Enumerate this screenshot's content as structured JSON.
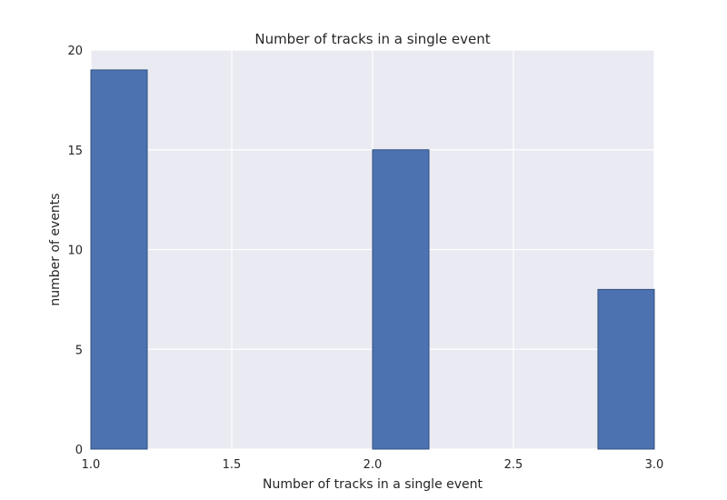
{
  "chart_data": {
    "type": "bar",
    "title": "Number of tracks in a single event",
    "xlabel": "Number of tracks in a single event",
    "ylabel": "number of events",
    "xlim": [
      1.0,
      3.0
    ],
    "ylim": [
      0,
      20
    ],
    "xticks": [
      "1.0",
      "1.5",
      "2.0",
      "2.5",
      "3.0"
    ],
    "yticks": [
      "0",
      "5",
      "10",
      "15",
      "20"
    ],
    "bins": [
      {
        "x_start": 1.0,
        "x_end": 1.2,
        "value": 19
      },
      {
        "x_start": 1.2,
        "x_end": 1.4,
        "value": 0
      },
      {
        "x_start": 1.4,
        "x_end": 1.6,
        "value": 0
      },
      {
        "x_start": 1.6,
        "x_end": 1.8,
        "value": 0
      },
      {
        "x_start": 1.8,
        "x_end": 2.0,
        "value": 0
      },
      {
        "x_start": 2.0,
        "x_end": 2.2,
        "value": 15
      },
      {
        "x_start": 2.2,
        "x_end": 2.4,
        "value": 0
      },
      {
        "x_start": 2.4,
        "x_end": 2.6,
        "value": 0
      },
      {
        "x_start": 2.6,
        "x_end": 2.8,
        "value": 0
      },
      {
        "x_start": 2.8,
        "x_end": 3.0,
        "value": 8
      }
    ],
    "grid": true,
    "colors": {
      "bar_fill": "#4c72b0",
      "bar_edge": "#2f4f7f",
      "plot_background": "#eaeaf2",
      "grid": "#ffffff"
    }
  }
}
